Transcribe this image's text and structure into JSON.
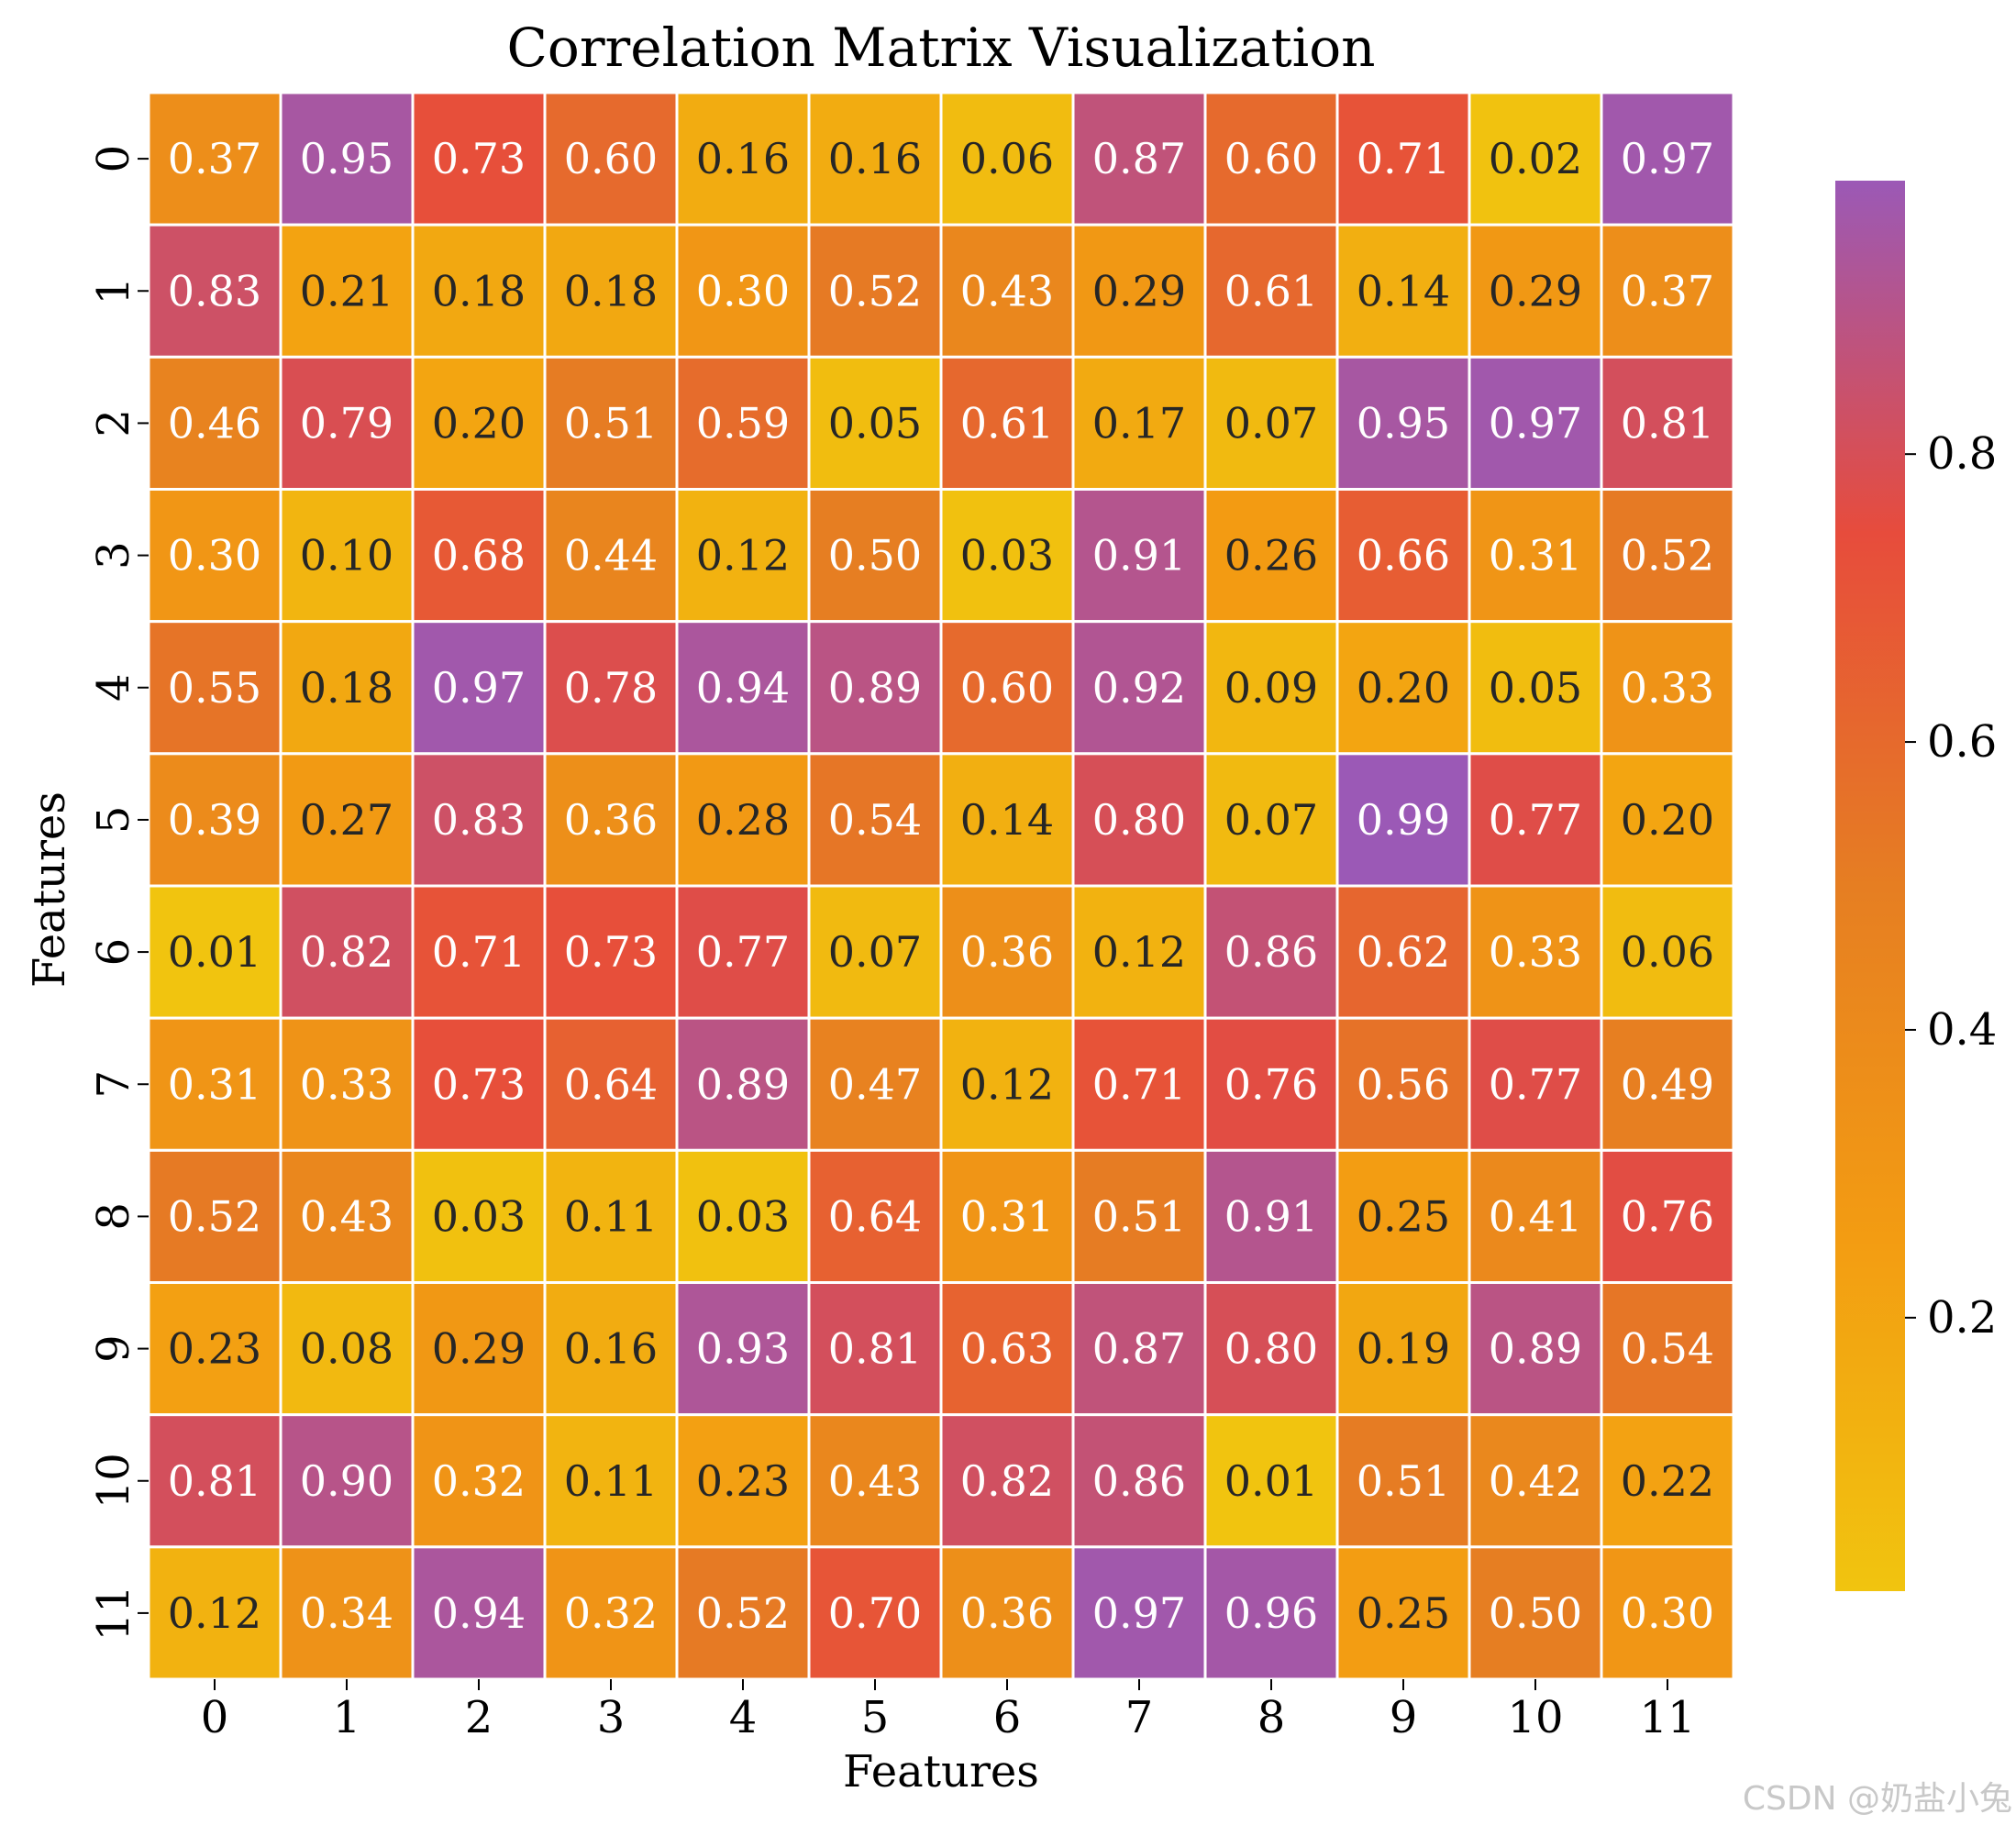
{
  "chart_data": {
    "type": "heatmap",
    "title": "Correlation Matrix Visualization",
    "xlabel": "Features",
    "ylabel": "Features",
    "x_categories": [
      "0",
      "1",
      "2",
      "3",
      "4",
      "5",
      "6",
      "7",
      "8",
      "9",
      "10",
      "11"
    ],
    "y_categories": [
      "0",
      "1",
      "2",
      "3",
      "4",
      "5",
      "6",
      "7",
      "8",
      "9",
      "10",
      "11"
    ],
    "values": [
      [
        0.37,
        0.95,
        0.73,
        0.6,
        0.16,
        0.16,
        0.06,
        0.87,
        0.6,
        0.71,
        0.02,
        0.97
      ],
      [
        0.83,
        0.21,
        0.18,
        0.18,
        0.3,
        0.52,
        0.43,
        0.29,
        0.61,
        0.14,
        0.29,
        0.37
      ],
      [
        0.46,
        0.79,
        0.2,
        0.51,
        0.59,
        0.05,
        0.61,
        0.17,
        0.07,
        0.95,
        0.97,
        0.81
      ],
      [
        0.3,
        0.1,
        0.68,
        0.44,
        0.12,
        0.5,
        0.03,
        0.91,
        0.26,
        0.66,
        0.31,
        0.52
      ],
      [
        0.55,
        0.18,
        0.97,
        0.78,
        0.94,
        0.89,
        0.6,
        0.92,
        0.09,
        0.2,
        0.05,
        0.33
      ],
      [
        0.39,
        0.27,
        0.83,
        0.36,
        0.28,
        0.54,
        0.14,
        0.8,
        0.07,
        0.99,
        0.77,
        0.2
      ],
      [
        0.01,
        0.82,
        0.71,
        0.73,
        0.77,
        0.07,
        0.36,
        0.12,
        0.86,
        0.62,
        0.33,
        0.06
      ],
      [
        0.31,
        0.33,
        0.73,
        0.64,
        0.89,
        0.47,
        0.12,
        0.71,
        0.76,
        0.56,
        0.77,
        0.49
      ],
      [
        0.52,
        0.43,
        0.03,
        0.11,
        0.03,
        0.64,
        0.31,
        0.51,
        0.91,
        0.25,
        0.41,
        0.76
      ],
      [
        0.23,
        0.08,
        0.29,
        0.16,
        0.93,
        0.81,
        0.63,
        0.87,
        0.8,
        0.19,
        0.89,
        0.54
      ],
      [
        0.81,
        0.9,
        0.32,
        0.11,
        0.23,
        0.43,
        0.82,
        0.86,
        0.01,
        0.51,
        0.42,
        0.22
      ],
      [
        0.12,
        0.34,
        0.94,
        0.32,
        0.52,
        0.7,
        0.36,
        0.97,
        0.96,
        0.25,
        0.5,
        0.3
      ]
    ],
    "value_format": "0.00",
    "colormap": {
      "stops": [
        "#f1c40f",
        "#f39c12",
        "#e67e22",
        "#e74c3c",
        "#9b59b6"
      ],
      "vmin": 0.01,
      "vmax": 0.99
    },
    "colorbar": {
      "ticks": [
        0.2,
        0.4,
        0.6,
        0.8
      ],
      "tick_labels": [
        "0.2",
        "0.4",
        "0.6",
        "0.8"
      ]
    },
    "grid_line_color": "#ffffff",
    "dark_text_color": "#262626",
    "light_text_color": "#ffffff"
  },
  "watermark": "CSDN @奶盐小兔"
}
